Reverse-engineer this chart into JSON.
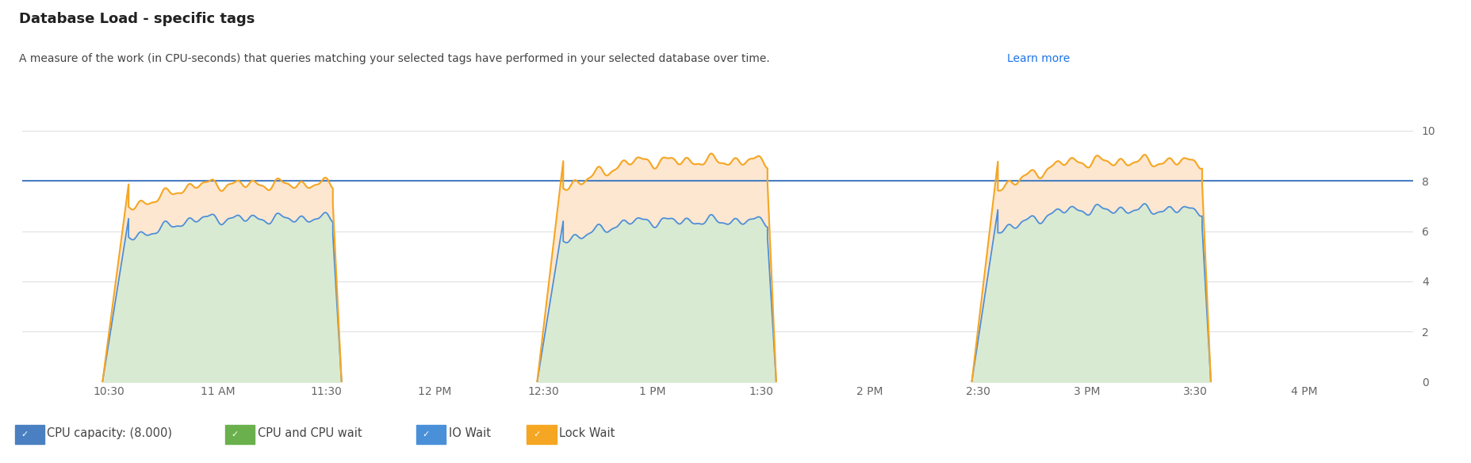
{
  "title": "Database Load - specific tags",
  "subtitle1": "A measure of the work (in CPU-seconds) that queries matching your selected tags have performed in your selected database over time. ",
  "subtitle_link": "Learn more",
  "ylim": [
    0,
    10.5
  ],
  "yticks": [
    0,
    2,
    4,
    6,
    8,
    10
  ],
  "cpu_capacity": 8.0,
  "capacity_color": "#4a7fc1",
  "cpu_wait_fill": "#d9ead3",
  "io_wait_color": "#4a90d9",
  "lock_wait_color": "#f5a623",
  "lock_wait_fill": "#fde5cc",
  "bg_color": "#ffffff",
  "grid_color": "#e0e0e0",
  "xtick_labels": [
    "10:30",
    "11 AM",
    "11:30",
    "12 PM",
    "12:30",
    "1 PM",
    "1:30",
    "2 PM",
    "2:30",
    "3 PM",
    "3:30",
    "4 PM"
  ],
  "legend_items": [
    {
      "label": "CPU capacity: (8.000)",
      "color": "#4a7fc1",
      "type": "square"
    },
    {
      "label": "CPU and CPU wait",
      "color": "#6ab04c",
      "type": "square"
    },
    {
      "label": "IO Wait",
      "color": "#4a90d9",
      "type": "square"
    },
    {
      "label": "Lock Wait",
      "color": "#f5a623",
      "type": "square"
    }
  ]
}
